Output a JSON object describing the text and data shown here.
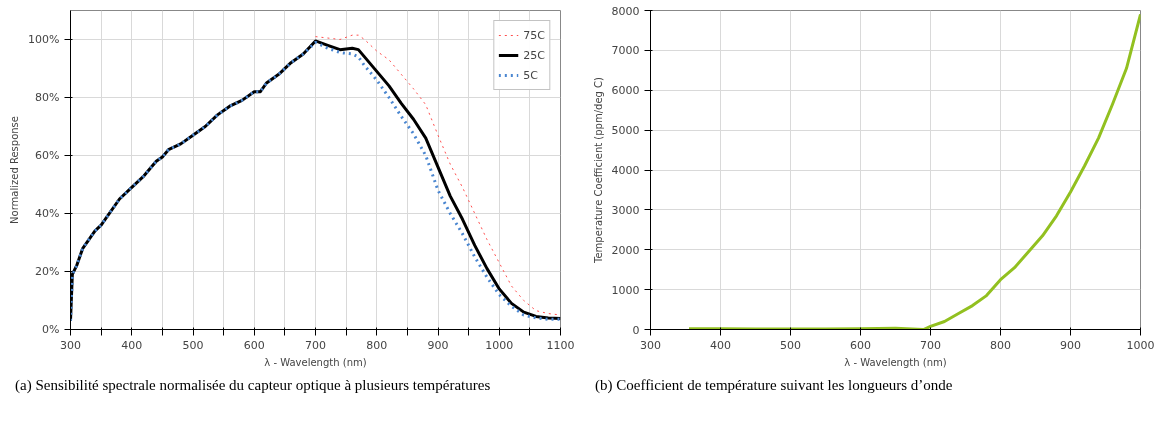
{
  "chart_data": [
    {
      "type": "line",
      "xlabel": "λ - Wavelength (nm)",
      "ylabel": "Normalized Response",
      "xlim": [
        300,
        1100
      ],
      "ylim": [
        0,
        110
      ],
      "xticks": [
        300,
        {
          "value": 350,
          "label": null
        },
        400,
        {
          "value": 450,
          "label": null
        },
        500,
        {
          "value": 550,
          "label": null
        },
        600,
        {
          "value": 650,
          "label": null
        },
        700,
        {
          "value": 750,
          "label": null
        },
        800,
        {
          "value": 850,
          "label": null
        },
        900,
        {
          "value": 950,
          "label": null
        },
        1000,
        {
          "value": 1050,
          "label": null
        },
        1100
      ],
      "yticks": [
        {
          "value": 0,
          "label": "0%"
        },
        {
          "value": 20,
          "label": "20%"
        },
        {
          "value": 40,
          "label": "40%"
        },
        {
          "value": 60,
          "label": "60%"
        },
        {
          "value": 80,
          "label": "80%"
        },
        {
          "value": 100,
          "label": "100%"
        }
      ],
      "grid": true,
      "legend": "top right",
      "x": [
        300,
        303,
        310,
        320,
        330,
        340,
        350,
        360,
        380,
        400,
        420,
        440,
        450,
        460,
        480,
        500,
        520,
        540,
        560,
        580,
        600,
        610,
        620,
        640,
        660,
        680,
        700,
        720,
        740,
        760,
        770,
        780,
        800,
        820,
        840,
        860,
        880,
        900,
        920,
        940,
        960,
        980,
        1000,
        1020,
        1040,
        1060,
        1080,
        1100
      ],
      "series": [
        {
          "name": "75C",
          "color": "#ff4d4d",
          "line_style": "dotted",
          "values": [
            null,
            null,
            null,
            null,
            null,
            null,
            null,
            null,
            null,
            null,
            null,
            null,
            null,
            null,
            null,
            null,
            null,
            null,
            null,
            null,
            null,
            null,
            null,
            null,
            null,
            null,
            101,
            100.5,
            100,
            101.5,
            101.5,
            100,
            96,
            93,
            88,
            83,
            77.5,
            67,
            57,
            49,
            40,
            31,
            23,
            15,
            10,
            6.5,
            5.5,
            5
          ]
        },
        {
          "name": "25C",
          "color": "#000000",
          "line_style": "solid",
          "values": [
            3,
            19,
            22,
            28,
            31,
            34,
            36,
            39,
            45,
            49,
            53,
            58,
            59.5,
            62,
            64,
            67,
            70,
            74,
            77,
            79,
            82,
            82,
            85,
            88,
            92,
            95,
            99.5,
            98,
            96.5,
            97,
            96.5,
            94,
            89,
            84,
            78,
            72.5,
            66,
            56,
            46,
            38,
            29,
            21,
            14,
            9,
            6,
            4.5,
            4,
            3.8
          ]
        },
        {
          "name": "5C",
          "color": "#4a86d0",
          "line_style": "dotted",
          "values": [
            3,
            19,
            22,
            28,
            31,
            34,
            36,
            39,
            45,
            49,
            53,
            58,
            59.5,
            62,
            64,
            67,
            70,
            74,
            77,
            79,
            82,
            82,
            85,
            88,
            92,
            95,
            99,
            97,
            95.5,
            95,
            94,
            91,
            86,
            80,
            73.5,
            67.5,
            60,
            48,
            40,
            33,
            25,
            18,
            12,
            8,
            5,
            4,
            3.5,
            3.5
          ]
        }
      ],
      "annotations": [
        "(a) Sensibilité spectrale normalisée du capteur optique à plusieurs températures"
      ]
    },
    {
      "type": "line",
      "xlabel": "λ - Wavelength (nm)",
      "ylabel": "Temperature Coefficient (ppm/deg C)",
      "xlim": [
        300,
        1000
      ],
      "ylim": [
        0,
        8000
      ],
      "xticks": [
        300,
        400,
        500,
        600,
        700,
        800,
        900,
        1000
      ],
      "yticks": [
        0,
        1000,
        2000,
        3000,
        4000,
        5000,
        6000,
        7000,
        8000
      ],
      "grid": true,
      "x": [
        355,
        400,
        450,
        500,
        550,
        600,
        650,
        690,
        700,
        720,
        740,
        760,
        780,
        800,
        820,
        840,
        860,
        880,
        900,
        920,
        940,
        960,
        980,
        1000
      ],
      "series": [
        {
          "color": "#92c020",
          "line_style": "solid",
          "values": [
            20,
            20,
            10,
            10,
            10,
            20,
            30,
            0,
            80,
            200,
            400,
            600,
            850,
            1250,
            1550,
            1950,
            2350,
            2850,
            3450,
            4100,
            4800,
            5650,
            6550,
            7900
          ]
        }
      ],
      "annotations": [
        "(b) Coefficient de température suivant les longueurs d’onde"
      ]
    }
  ]
}
